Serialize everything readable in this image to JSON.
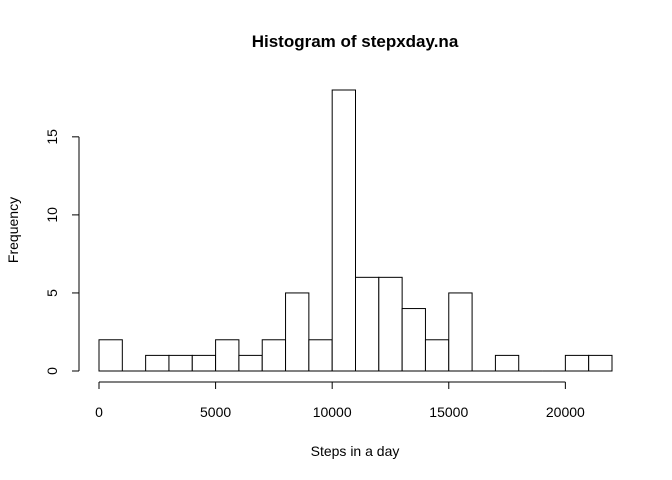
{
  "chart_data": {
    "type": "bar",
    "subtype": "histogram",
    "title": "Histogram of stepxday.na",
    "xlabel": "Steps in a day",
    "ylabel": "Frequency",
    "bin_width": 1000,
    "bins": [
      {
        "start": 0,
        "end": 1000,
        "count": 2
      },
      {
        "start": 1000,
        "end": 2000,
        "count": 0
      },
      {
        "start": 2000,
        "end": 3000,
        "count": 1
      },
      {
        "start": 3000,
        "end": 4000,
        "count": 1
      },
      {
        "start": 4000,
        "end": 5000,
        "count": 1
      },
      {
        "start": 5000,
        "end": 6000,
        "count": 2
      },
      {
        "start": 6000,
        "end": 7000,
        "count": 1
      },
      {
        "start": 7000,
        "end": 8000,
        "count": 2
      },
      {
        "start": 8000,
        "end": 9000,
        "count": 5
      },
      {
        "start": 9000,
        "end": 10000,
        "count": 2
      },
      {
        "start": 10000,
        "end": 11000,
        "count": 18
      },
      {
        "start": 11000,
        "end": 12000,
        "count": 6
      },
      {
        "start": 12000,
        "end": 13000,
        "count": 6
      },
      {
        "start": 13000,
        "end": 14000,
        "count": 4
      },
      {
        "start": 14000,
        "end": 15000,
        "count": 2
      },
      {
        "start": 15000,
        "end": 16000,
        "count": 5
      },
      {
        "start": 16000,
        "end": 17000,
        "count": 0
      },
      {
        "start": 17000,
        "end": 18000,
        "count": 1
      },
      {
        "start": 18000,
        "end": 19000,
        "count": 0
      },
      {
        "start": 19000,
        "end": 20000,
        "count": 0
      },
      {
        "start": 20000,
        "end": 21000,
        "count": 1
      },
      {
        "start": 21000,
        "end": 22000,
        "count": 1
      }
    ],
    "xlim": [
      0,
      22000
    ],
    "ylim": [
      0,
      18
    ],
    "x_ticks": [
      0,
      5000,
      10000,
      15000,
      20000
    ],
    "y_ticks": [
      0,
      5,
      10,
      15
    ],
    "grid": false,
    "legend": "none",
    "colors": {
      "bar_fill": "#ffffff",
      "bar_stroke": "#000000",
      "text": "#000000"
    }
  }
}
